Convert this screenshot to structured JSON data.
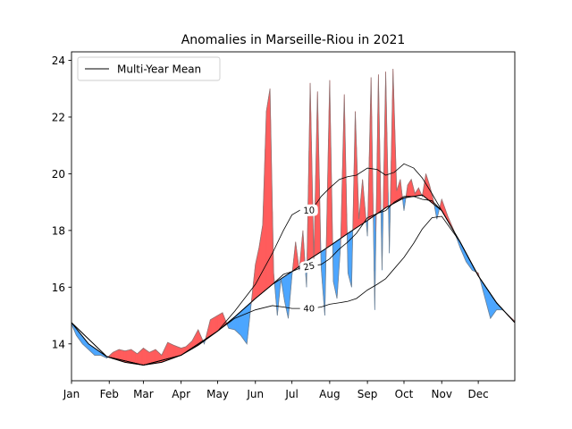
{
  "chart_data": {
    "type": "area",
    "title": "Anomalies in Marseille-Riou in 2021",
    "xlabel": "",
    "ylabel": "",
    "x_unit": "day of year",
    "xlim": [
      1,
      365
    ],
    "ylim": [
      12.7,
      24.3
    ],
    "yticks": [
      14,
      16,
      18,
      20,
      22,
      24
    ],
    "xticks": [
      {
        "day": 1,
        "label": "Jan"
      },
      {
        "day": 32,
        "label": "Feb"
      },
      {
        "day": 60,
        "label": "Mar"
      },
      {
        "day": 91,
        "label": "Apr"
      },
      {
        "day": 121,
        "label": "May"
      },
      {
        "day": 152,
        "label": "Jun"
      },
      {
        "day": 182,
        "label": "Jul"
      },
      {
        "day": 213,
        "label": "Aug"
      },
      {
        "day": 244,
        "label": "Sep"
      },
      {
        "day": 274,
        "label": "Oct"
      },
      {
        "day": 305,
        "label": "Nov"
      },
      {
        "day": 335,
        "label": "Dec"
      }
    ],
    "grid": false,
    "legend": {
      "placement": "top-left",
      "entries": [
        {
          "label": "Multi-Year Mean",
          "color": "#000000"
        }
      ]
    },
    "colors": {
      "above": "#ff5c5c",
      "below": "#4da6ff",
      "observed_edge": "#777777",
      "mean_line": "#000000"
    },
    "mean": {
      "name": "Multi-Year Mean",
      "x": [
        1,
        15,
        30,
        45,
        60,
        75,
        91,
        105,
        121,
        135,
        152,
        166,
        182,
        197,
        213,
        228,
        244,
        259,
        274,
        289,
        305,
        320,
        335,
        350,
        365
      ],
      "y": [
        14.75,
        14.0,
        13.55,
        13.35,
        13.25,
        13.35,
        13.6,
        13.95,
        14.45,
        14.95,
        15.6,
        16.1,
        16.55,
        17.0,
        17.45,
        17.9,
        18.35,
        18.8,
        19.15,
        19.25,
        18.7,
        17.6,
        16.4,
        15.45,
        14.75
      ]
    },
    "percentiles": [
      {
        "name": "10",
        "label_day": 196,
        "x": [
          1,
          30,
          60,
          91,
          121,
          135,
          152,
          166,
          175,
          182,
          190,
          198,
          206,
          213,
          221,
          228,
          235,
          244,
          252,
          259,
          266,
          274,
          282,
          289,
          297,
          305,
          320,
          335,
          350,
          365
        ],
        "y": [
          14.75,
          13.55,
          13.25,
          13.6,
          14.45,
          15.15,
          16.1,
          17.2,
          18.0,
          18.55,
          18.75,
          18.7,
          19.2,
          19.5,
          19.8,
          19.9,
          19.95,
          20.2,
          20.15,
          19.95,
          20.05,
          20.35,
          20.2,
          19.85,
          19.3,
          18.7,
          17.6,
          16.4,
          15.45,
          14.75
        ]
      },
      {
        "name": "25",
        "label_day": 196,
        "x": [
          1,
          30,
          60,
          91,
          121,
          135,
          152,
          166,
          175,
          182,
          190,
          198,
          206,
          213,
          221,
          228,
          235,
          244,
          252,
          259,
          266,
          274,
          282,
          289,
          297,
          305,
          320,
          335,
          350,
          365
        ],
        "y": [
          14.75,
          13.55,
          13.25,
          13.6,
          14.45,
          14.95,
          15.6,
          16.1,
          16.45,
          16.55,
          16.7,
          16.75,
          16.8,
          17.0,
          17.35,
          17.6,
          17.9,
          18.45,
          18.6,
          18.7,
          19.0,
          19.2,
          19.2,
          19.1,
          19.05,
          18.7,
          17.6,
          16.4,
          15.45,
          14.75
        ]
      },
      {
        "name": "40",
        "label_day": 196,
        "x": [
          1,
          30,
          60,
          91,
          121,
          135,
          152,
          166,
          175,
          182,
          190,
          198,
          206,
          213,
          221,
          228,
          235,
          244,
          252,
          259,
          266,
          274,
          282,
          289,
          297,
          305,
          320,
          335,
          350,
          365
        ],
        "y": [
          14.75,
          13.55,
          13.25,
          13.6,
          14.45,
          14.9,
          15.2,
          15.35,
          15.3,
          15.25,
          15.25,
          15.25,
          15.3,
          15.4,
          15.45,
          15.5,
          15.6,
          15.9,
          16.1,
          16.3,
          16.65,
          17.05,
          17.55,
          18.05,
          18.45,
          18.5,
          17.6,
          16.4,
          15.45,
          14.75
        ]
      }
    ],
    "observed": {
      "name": "2021",
      "x": [
        1,
        5,
        10,
        15,
        20,
        25,
        30,
        35,
        40,
        45,
        50,
        55,
        60,
        65,
        70,
        75,
        80,
        85,
        91,
        95,
        100,
        105,
        110,
        115,
        121,
        125,
        130,
        135,
        140,
        145,
        152,
        155,
        158,
        161,
        164,
        167,
        170,
        173,
        176,
        179,
        182,
        185,
        188,
        191,
        194,
        197,
        200,
        203,
        206,
        209,
        213,
        216,
        219,
        222,
        225,
        228,
        231,
        234,
        237,
        240,
        244,
        247,
        250,
        253,
        256,
        259,
        262,
        265,
        268,
        271,
        274,
        277,
        280,
        283,
        286,
        289,
        292,
        295,
        298,
        301,
        305,
        310,
        315,
        320,
        325,
        330,
        335,
        340,
        345,
        350,
        355,
        360,
        365
      ],
      "y": [
        14.7,
        14.3,
        14.0,
        13.8,
        13.6,
        13.6,
        13.5,
        13.7,
        13.8,
        13.75,
        13.8,
        13.65,
        13.85,
        13.7,
        13.8,
        13.6,
        14.05,
        13.95,
        13.85,
        13.9,
        14.1,
        14.5,
        14.0,
        14.85,
        15.0,
        15.1,
        14.55,
        14.5,
        14.3,
        14.0,
        16.8,
        17.4,
        18.2,
        22.2,
        23.0,
        16.5,
        15.0,
        16.3,
        15.5,
        14.9,
        16.4,
        17.6,
        16.6,
        18.0,
        16.0,
        23.2,
        17.0,
        22.9,
        16.7,
        15.0,
        23.3,
        16.2,
        15.6,
        17.5,
        22.8,
        16.5,
        16.0,
        22.2,
        18.4,
        19.8,
        17.8,
        23.4,
        15.2,
        23.5,
        16.6,
        23.6,
        17.2,
        23.7,
        19.4,
        19.8,
        18.7,
        19.6,
        19.8,
        19.3,
        19.5,
        19.2,
        20.0,
        19.6,
        19.1,
        18.4,
        19.1,
        18.5,
        18.0,
        17.4,
        16.9,
        16.6,
        16.5,
        15.7,
        14.9,
        15.2,
        15.2,
        15.0,
        14.8
      ]
    }
  }
}
